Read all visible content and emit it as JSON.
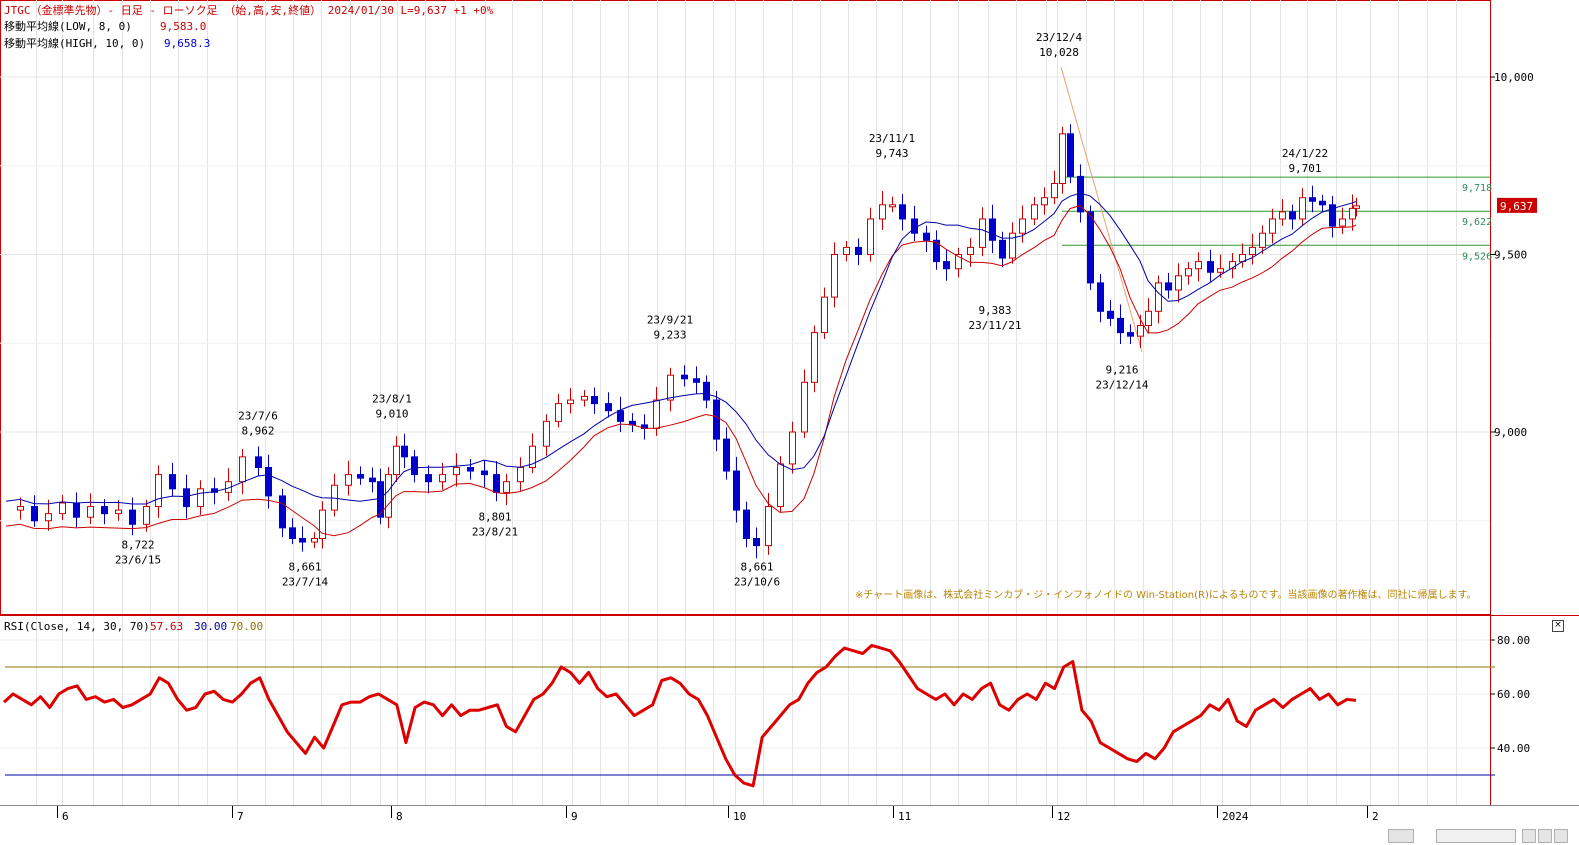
{
  "header": {
    "line1_prefix": "JTGC（金標準先物）- 日足 - ローソク足 （始,高,安,終値） 2024/01/30  L=9,637  +1  +0%",
    "ma_low_label": "移動平均線(LOW, 8, 0)",
    "ma_low_value": "9,583.0",
    "ma_high_label": "移動平均線(HIGH, 10, 0)",
    "ma_high_value": "9,658.3"
  },
  "notice": "※チャート画像は、株式会社ミンカブ・ジ・インフォノイドの Win-Station(R)によるものです。当該画像の著作権は、同社に帰属します。",
  "price_axis": {
    "ticks": [
      {
        "value": 10000,
        "label": "10,000"
      },
      {
        "value": 9500,
        "label": "9,500"
      },
      {
        "value": 9000,
        "label": "9,000"
      }
    ],
    "last_price_label": "9,637",
    "last_price": 9637
  },
  "hlines": [
    {
      "value": 9718,
      "label": "9,718"
    },
    {
      "value": 9622,
      "label": "9,622"
    },
    {
      "value": 9526,
      "label": "9,526"
    }
  ],
  "annotations": [
    {
      "date": "23/6/15",
      "price": "8,722",
      "below": true
    },
    {
      "date": "23/7/6",
      "price": "8,962",
      "below": false
    },
    {
      "date": "23/7/14",
      "price": "8,661",
      "below": true
    },
    {
      "date": "23/8/1",
      "price": "9,010",
      "below": false
    },
    {
      "date": "23/8/21",
      "price": "8,801",
      "below": true
    },
    {
      "date": "23/9/21",
      "price": "9,233",
      "below": false
    },
    {
      "date": "23/10/6",
      "price": "8,661",
      "below": true
    },
    {
      "date": "23/11/1",
      "price": "9,743",
      "below": false
    },
    {
      "date": "23/11/21",
      "price": "9,383",
      "below": true
    },
    {
      "date": "23/12/4",
      "price": "10,028",
      "below": false
    },
    {
      "date": "23/12/14",
      "price": "9,216",
      "below": true
    },
    {
      "date": "24/1/22",
      "price": "9,701",
      "below": false
    }
  ],
  "rsi_header": {
    "label": "RSI(Close, 14, 30, 70)",
    "value": "57.63",
    "low": "30.00",
    "high": "70.00"
  },
  "rsi_axis": [
    {
      "value": 80,
      "label": "80.00"
    },
    {
      "value": 60,
      "label": "60.00"
    },
    {
      "value": 40,
      "label": "40.00"
    }
  ],
  "x_axis": {
    "months": [
      "6",
      "7",
      "8",
      "9",
      "10",
      "11",
      "12",
      "2024",
      "2"
    ]
  },
  "colors": {
    "up": "#cc0000",
    "down": "#0000cc",
    "ma_low": "#cc0000",
    "ma_high": "#0000aa",
    "rsi": "#dd0000",
    "rsi_high": "#8b7500",
    "rsi_low": "#0000aa",
    "hline": "#2e9b2e",
    "trend": "#f0a070"
  },
  "chart_data": [
    {
      "type": "candlestick",
      "title": "JTGC（金標準先物）- 日足 - ローソク足 （始,高,安,終値）",
      "date_range": [
        "2023/05",
        "2024/01/30"
      ],
      "anchors": [
        {
          "date": "23/6/15",
          "low": 8722
        },
        {
          "date": "23/7/6",
          "high": 8962
        },
        {
          "date": "23/7/14",
          "low": 8661
        },
        {
          "date": "23/8/1",
          "high": 9010
        },
        {
          "date": "23/8/21",
          "low": 8801
        },
        {
          "date": "23/9/21",
          "high": 9233
        },
        {
          "date": "23/10/6",
          "low": 8661
        },
        {
          "date": "23/11/1",
          "high": 9743
        },
        {
          "date": "23/11/21",
          "low": 9383
        },
        {
          "date": "23/12/4",
          "high": 10028
        },
        {
          "date": "23/12/14",
          "low": 9216
        },
        {
          "date": "24/1/22",
          "high": 9701
        }
      ],
      "last": {
        "date": "2024/01/30",
        "close": 9637,
        "change": 1
      },
      "moving_averages": [
        {
          "name": "移動平均線(LOW, 8, 0)",
          "last": 9583.0
        },
        {
          "name": "移動平均線(HIGH, 10, 0)",
          "last": 9658.3
        }
      ],
      "ylim": [
        8500,
        10200
      ],
      "y_ticks": [
        9000,
        9500,
        10000
      ],
      "reference_lines": [
        9718,
        9622,
        9526
      ]
    },
    {
      "type": "line",
      "title": "RSI(Close, 14, 30, 70)",
      "last": 57.63,
      "thresholds": [
        30,
        70
      ],
      "ylim": [
        20,
        90
      ],
      "y_ticks": [
        40,
        60,
        80
      ],
      "values": [
        57,
        60,
        58,
        56,
        59,
        55,
        60,
        62,
        63,
        58,
        59,
        57,
        58,
        55,
        56,
        58,
        60,
        66,
        64,
        58,
        54,
        55,
        60,
        61,
        58,
        57,
        60,
        64,
        66,
        58,
        52,
        46,
        42,
        38,
        44,
        40,
        48,
        56,
        57,
        57,
        59,
        60,
        58,
        56,
        42,
        55,
        57,
        56,
        52,
        56,
        52,
        54,
        54,
        55,
        56,
        48,
        46,
        52,
        58,
        60,
        64,
        70,
        68,
        64,
        68,
        62,
        59,
        60,
        56,
        52,
        54,
        56,
        65,
        66,
        64,
        60,
        58,
        52,
        44,
        36,
        30,
        27,
        26,
        44,
        48,
        52,
        56,
        58,
        64,
        68,
        70,
        74,
        77,
        76,
        75,
        78,
        77,
        76,
        72,
        67,
        62,
        60,
        58,
        60,
        56,
        60,
        58,
        62,
        64,
        56,
        54,
        58,
        60,
        58,
        64,
        62,
        70,
        72,
        54,
        50,
        42,
        40,
        38,
        36,
        35,
        38,
        36,
        40,
        46,
        48,
        50,
        52,
        56,
        54,
        58,
        50,
        48,
        54,
        56,
        58,
        55,
        58,
        60,
        62,
        58,
        60,
        56,
        58,
        57.63
      ]
    }
  ]
}
